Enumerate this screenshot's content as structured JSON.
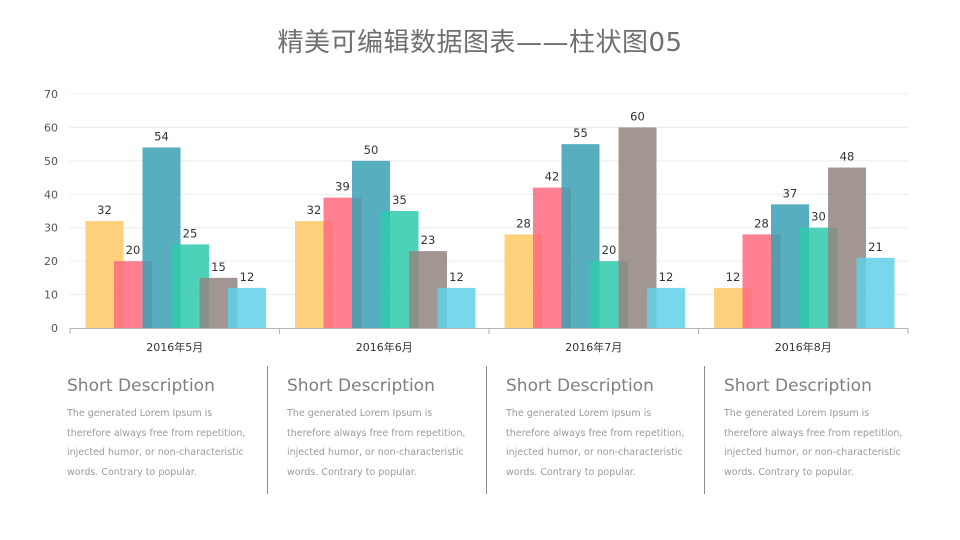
{
  "title": "精美可编辑数据图表——柱状图05",
  "chart_data": {
    "type": "bar",
    "categories": [
      "2016年5月",
      "2016年6月",
      "2016年7月",
      "2016年8月"
    ],
    "series": [
      {
        "color": "#FFC966",
        "values": [
          32,
          32,
          28,
          12
        ]
      },
      {
        "color": "#FF6B7F",
        "values": [
          20,
          39,
          42,
          28
        ]
      },
      {
        "color": "#3AA1B4",
        "values": [
          54,
          50,
          55,
          37
        ]
      },
      {
        "color": "#30C9AE",
        "values": [
          25,
          35,
          20,
          30
        ]
      },
      {
        "color": "#938580",
        "values": [
          15,
          23,
          60,
          48
        ]
      },
      {
        "color": "#5FD2E6",
        "values": [
          12,
          12,
          12,
          21
        ]
      }
    ],
    "ylim": [
      0,
      70
    ],
    "yticks": [
      0,
      10,
      20,
      30,
      40,
      50,
      60,
      70
    ],
    "grid": true,
    "data_labels": true
  },
  "descriptions": [
    {
      "heading": "Short Description",
      "body": "The generated Lorem Ipsum is therefore always free from repetition, injected humor, or non-characteristic words. Contrary to popular."
    },
    {
      "heading": "Short Description",
      "body": "The generated Lorem Ipsum is therefore always free from repetition, injected humor, or non-characteristic words. Contrary to popular."
    },
    {
      "heading": "Short Description",
      "body": "The generated Lorem Ipsum is therefore always free from repetition, injected humor, or non-characteristic words. Contrary to popular."
    },
    {
      "heading": "Short Description",
      "body": "The generated Lorem Ipsum is therefore always free from repetition, injected humor, or non-characteristic words. Contrary to popular."
    }
  ]
}
